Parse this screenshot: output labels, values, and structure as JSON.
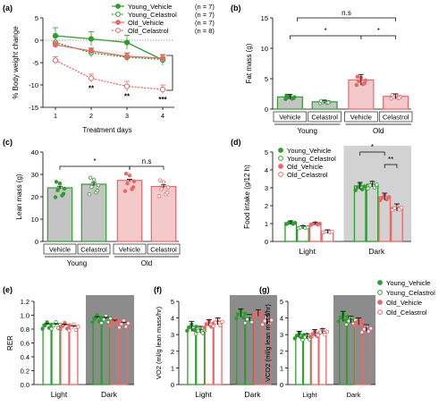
{
  "colors": {
    "young": "#2e9d2e",
    "young_fill": "#c4c4c4",
    "old": "#e8686a",
    "old_fill": "#f3c9c9",
    "dark_shade": "#d2d2d2",
    "dark_shade_bottom": "#8c8c8c"
  },
  "chart_data": [
    {
      "panel": "(a)",
      "type": "line",
      "xlabel": "Treatment days",
      "ylabel": "% Body weight change",
      "x": [
        1,
        2,
        3,
        4
      ],
      "ylim": [
        -15,
        5
      ],
      "yticks": [
        -15,
        -10,
        -5,
        0,
        5
      ],
      "series": [
        {
          "name": "Young_Vehicle",
          "n": "(n = 7)",
          "values": [
            1.0,
            0.3,
            -0.5,
            -4.4
          ],
          "err": [
            1.8,
            1.6,
            1.6,
            1.2
          ],
          "style": "solid-filled"
        },
        {
          "name": "Young_Celastrol",
          "n": "(n = 7)",
          "values": [
            -0.5,
            -2.8,
            -3.8,
            -4.3
          ],
          "err": [
            1.2,
            1.0,
            0.9,
            1.0
          ],
          "style": "dotted-open"
        },
        {
          "name": "Old_Vehicle",
          "n": "(n = 7)",
          "values": [
            -1.0,
            -2.4,
            -3.6,
            -4.0
          ],
          "err": [
            0.7,
            0.7,
            0.8,
            0.8
          ],
          "style": "solid-filled"
        },
        {
          "name": "Old_Celastrol",
          "n": "(n = 8)",
          "values": [
            -4.5,
            -8.5,
            -10.3,
            -11.0
          ],
          "err": [
            0.8,
            0.9,
            1.1,
            1.0
          ],
          "style": "dotted-open"
        }
      ],
      "annotations": [
        "**",
        "**",
        "***"
      ]
    },
    {
      "panel": "(b)",
      "type": "bar",
      "ylabel": "Fat mass (g)",
      "ylim": [
        0,
        15
      ],
      "yticks": [
        0,
        5,
        10,
        15
      ],
      "categories": [
        "Vehicle",
        "Celastrol",
        "Vehicle",
        "Celastrol"
      ],
      "groups": [
        "Young",
        "Old"
      ],
      "values": [
        2.0,
        1.2,
        4.8,
        2.1
      ],
      "err": [
        0.4,
        0.25,
        0.9,
        0.4
      ],
      "annotations": [
        "n.s",
        "*",
        "*"
      ]
    },
    {
      "panel": "(c)",
      "type": "bar",
      "ylabel": "Lean mass (g)",
      "ylim": [
        0,
        40
      ],
      "yticks": [
        0,
        10,
        20,
        30,
        40
      ],
      "categories": [
        "Vehicle",
        "Celastrol",
        "Vehicle",
        "Celastrol"
      ],
      "groups": [
        "Young",
        "Old"
      ],
      "values": [
        24.0,
        25.6,
        27.3,
        24.6
      ],
      "err": [
        0.7,
        0.8,
        0.5,
        0.7
      ],
      "annotations": [
        "*",
        "n.s"
      ]
    },
    {
      "panel": "(d)",
      "type": "bar",
      "ylabel": "Food intake (g/12 h)",
      "ylim": [
        0,
        5
      ],
      "yticks": [
        0,
        1,
        2,
        3,
        4,
        5
      ],
      "categories": [
        "Light",
        "Dark"
      ],
      "series": [
        {
          "name": "Young_Vehicle",
          "values": [
            1.05,
            3.1
          ],
          "err": [
            0.1,
            0.2
          ]
        },
        {
          "name": "Young_Celastrol",
          "values": [
            0.8,
            3.2
          ],
          "err": [
            0.08,
            0.15
          ]
        },
        {
          "name": "Old_Vehicle",
          "values": [
            1.0,
            2.5
          ],
          "err": [
            0.06,
            0.2
          ]
        },
        {
          "name": "Old_Celastrol",
          "values": [
            0.55,
            1.9
          ],
          "err": [
            0.1,
            0.2
          ]
        }
      ],
      "annotations": [
        "*",
        "**"
      ]
    },
    {
      "panel": "(e)",
      "type": "bar",
      "ylabel": "RER",
      "ylim": [
        0.0,
        1.2
      ],
      "yticks": [
        0.0,
        0.2,
        0.4,
        0.6,
        0.8,
        1.0,
        1.2
      ],
      "categories": [
        "Light",
        "Dark"
      ],
      "series": [
        {
          "name": "Young_Vehicle",
          "values": [
            0.87,
            0.97
          ],
          "err": [
            0.01,
            0.01
          ]
        },
        {
          "name": "Young_Celastrol",
          "values": [
            0.87,
            0.96
          ],
          "err": [
            0.01,
            0.01
          ]
        },
        {
          "name": "Old_Vehicle",
          "values": [
            0.86,
            0.92
          ],
          "err": [
            0.01,
            0.01
          ]
        },
        {
          "name": "Old_Celastrol",
          "values": [
            0.84,
            0.89
          ],
          "err": [
            0.01,
            0.01
          ]
        }
      ]
    },
    {
      "panel": "(f)",
      "type": "bar",
      "ylabel": "VO2 (ml/g lean mass/hr)",
      "ylim": [
        0,
        5
      ],
      "yticks": [
        0,
        1,
        2,
        3,
        4,
        5
      ],
      "categories": [
        "Light",
        "Dark"
      ],
      "series": [
        {
          "name": "Young_Vehicle",
          "values": [
            3.5,
            4.3
          ],
          "err": [
            0.3,
            0.25
          ]
        },
        {
          "name": "Young_Celastrol",
          "values": [
            3.3,
            4.0
          ],
          "err": [
            0.2,
            0.2
          ]
        },
        {
          "name": "Old_Vehicle",
          "values": [
            3.7,
            4.3
          ],
          "err": [
            0.2,
            0.2
          ]
        },
        {
          "name": "Old_Celastrol",
          "values": [
            3.8,
            3.9
          ],
          "err": [
            0.2,
            0.3
          ]
        }
      ]
    },
    {
      "panel": "(g)",
      "type": "bar",
      "ylabel": "VCO2 (ml/g lean mass/hr)",
      "ylim": [
        0,
        5
      ],
      "yticks": [
        0,
        1,
        2,
        3,
        4,
        5
      ],
      "categories": [
        "Light",
        "Dark"
      ],
      "series": [
        {
          "name": "Young_Vehicle",
          "values": [
            3.0,
            4.1
          ],
          "err": [
            0.2,
            0.3
          ]
        },
        {
          "name": "Young_Celastrol",
          "values": [
            2.9,
            3.9
          ],
          "err": [
            0.15,
            0.2
          ]
        },
        {
          "name": "Old_Vehicle",
          "values": [
            3.1,
            3.8
          ],
          "err": [
            0.2,
            0.2
          ]
        },
        {
          "name": "Old_Celastrol",
          "values": [
            3.2,
            3.4
          ],
          "err": [
            0.15,
            0.2
          ]
        }
      ]
    }
  ],
  "legend_gh": [
    "Young_Vehicle",
    "Young_Celastrol",
    "Old_Vehicle",
    "Old_Celastrol"
  ]
}
